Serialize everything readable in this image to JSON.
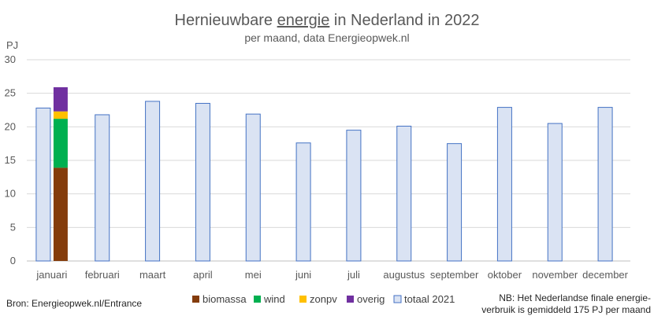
{
  "chart_data": {
    "type": "bar",
    "title_parts": [
      "Hernieuwbare ",
      "energie",
      " in Nederland in 2022"
    ],
    "subtitle": "per maand, data Energieopwek.nl",
    "ylabel": "PJ",
    "ylim": [
      0,
      30
    ],
    "yticks": [
      0,
      5,
      10,
      15,
      20,
      25,
      30
    ],
    "grid": true,
    "categories": [
      "januari",
      "februari",
      "maart",
      "april",
      "mei",
      "juni",
      "juli",
      "augustus",
      "september",
      "oktober",
      "november",
      "december"
    ],
    "series": [
      {
        "name": "totaal 2021",
        "values": [
          22.8,
          21.8,
          23.8,
          23.5,
          21.9,
          17.6,
          19.5,
          20.1,
          17.5,
          22.9,
          20.5,
          22.9
        ]
      },
      {
        "name": "biomassa",
        "values": [
          13.9,
          null,
          null,
          null,
          null,
          null,
          null,
          null,
          null,
          null,
          null,
          null
        ]
      },
      {
        "name": "wind",
        "values": [
          7.3,
          null,
          null,
          null,
          null,
          null,
          null,
          null,
          null,
          null,
          null,
          null
        ]
      },
      {
        "name": "zonpv",
        "values": [
          1.1,
          null,
          null,
          null,
          null,
          null,
          null,
          null,
          null,
          null,
          null,
          null
        ]
      },
      {
        "name": "overig",
        "values": [
          3.6,
          null,
          null,
          null,
          null,
          null,
          null,
          null,
          null,
          null,
          null,
          null
        ]
      }
    ],
    "colors": {
      "totaal 2021": "#dae3f3",
      "totaal 2021_border": "#4472c4",
      "biomassa": "#843c0c",
      "wind": "#00b050",
      "zonpv": "#ffc000",
      "overig": "#7030a0"
    },
    "legend_position": "bottom",
    "legend_order": [
      "biomassa",
      "wind",
      "zonpv",
      "overig",
      "totaal 2021"
    ]
  },
  "source_note": "Bron: Energieopwek.nl/Entrance",
  "footnote": [
    "NB: Het Nederlandse finale energie-",
    "verbruik is gemiddeld 175 PJ per maand"
  ]
}
